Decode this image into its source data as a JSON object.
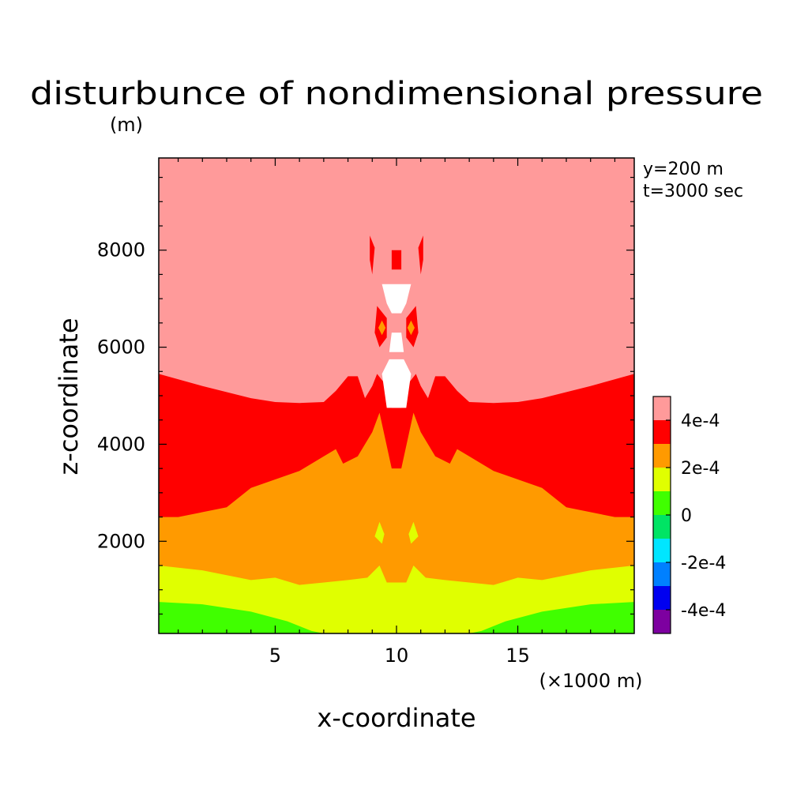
{
  "chart_data": {
    "type": "filled-contour",
    "title": "disturbunce of nondimensional pressure",
    "xlabel": "x-coordinate",
    "ylabel": "z-coordinate",
    "x_unit": "(×1000 m)",
    "y_unit": "(m)",
    "annotations": [
      "y=200 m",
      "t=3000 sec"
    ],
    "xlim": [
      0.2,
      19.8
    ],
    "ylim": [
      100,
      9900
    ],
    "x_ticks": [
      5,
      10,
      15
    ],
    "y_ticks": [
      2000,
      4000,
      6000,
      8000
    ],
    "grid": false,
    "legend_position": "right",
    "colorbar": {
      "levels": [
        {
          "lower": -0.0005,
          "upper": -0.0004,
          "color": "#7d00a0"
        },
        {
          "lower": -0.0004,
          "upper": -0.0003,
          "color": "#0000f0"
        },
        {
          "lower": -0.0003,
          "upper": -0.0002,
          "color": "#0080ff"
        },
        {
          "lower": -0.0002,
          "upper": -0.0001,
          "color": "#00e6ff"
        },
        {
          "lower": -0.0001,
          "upper": 0,
          "color": "#00e464"
        },
        {
          "lower": 0,
          "upper": 0.0001,
          "color": "#40ff00"
        },
        {
          "lower": 0.0001,
          "upper": 0.0002,
          "color": "#e0ff00"
        },
        {
          "lower": 0.0002,
          "upper": 0.0003,
          "color": "#ff9a00"
        },
        {
          "lower": 0.0003,
          "upper": 0.0004,
          "color": "#ff0000"
        },
        {
          "lower": 0.0004,
          "upper": 0.0005,
          "color": "#ff9a9a"
        }
      ],
      "tick_labels": [
        "4e-4",
        "2e-4",
        "0",
        "-2e-4",
        "-4e-4"
      ],
      "tick_values": [
        0.0004,
        0.0002,
        0,
        -0.0002,
        -0.0004
      ]
    },
    "contour_boundaries": [
      {
        "name": "upper-0.0003",
        "points": [
          [
            0.2,
            5450
          ],
          [
            2,
            5200
          ],
          [
            4,
            4950
          ],
          [
            5,
            4870
          ],
          [
            6,
            4850
          ],
          [
            7,
            4870
          ],
          [
            7.5,
            5100
          ],
          [
            8,
            5400
          ],
          [
            8.4,
            5400
          ],
          [
            8.7,
            4950
          ],
          [
            9,
            5200
          ],
          [
            9.2,
            5450
          ],
          [
            9.6,
            5200
          ],
          [
            9.8,
            4750
          ],
          [
            10.2,
            4750
          ],
          [
            10.4,
            5200
          ],
          [
            10.8,
            5450
          ],
          [
            11,
            5200
          ],
          [
            11.3,
            4950
          ],
          [
            11.6,
            5400
          ],
          [
            12,
            5400
          ],
          [
            12.5,
            5100
          ],
          [
            13,
            4870
          ],
          [
            14,
            4850
          ],
          [
            15,
            4870
          ],
          [
            16,
            4950
          ],
          [
            18,
            5200
          ],
          [
            19.8,
            5450
          ]
        ]
      },
      {
        "name": "upper-0.0002",
        "points": [
          [
            0.2,
            2500
          ],
          [
            1,
            2500
          ],
          [
            3,
            2700
          ],
          [
            4,
            3100
          ],
          [
            6,
            3450
          ],
          [
            7,
            3750
          ],
          [
            7.5,
            3900
          ],
          [
            7.8,
            3600
          ],
          [
            8.4,
            3750
          ],
          [
            9,
            4250
          ],
          [
            9.3,
            4650
          ],
          [
            9.8,
            3500
          ],
          [
            10.2,
            3500
          ],
          [
            10.7,
            4650
          ],
          [
            11,
            4250
          ],
          [
            11.6,
            3750
          ],
          [
            12.2,
            3600
          ],
          [
            12.5,
            3900
          ],
          [
            13,
            3750
          ],
          [
            14,
            3450
          ],
          [
            16,
            3100
          ],
          [
            17,
            2700
          ],
          [
            19,
            2500
          ],
          [
            19.8,
            2500
          ]
        ]
      },
      {
        "name": "upper-0.0001",
        "points": [
          [
            0.2,
            1500
          ],
          [
            2,
            1400
          ],
          [
            4,
            1200
          ],
          [
            5,
            1250
          ],
          [
            6,
            1100
          ],
          [
            7,
            1150
          ],
          [
            8,
            1200
          ],
          [
            8.8,
            1250
          ],
          [
            9.3,
            1500
          ],
          [
            9.6,
            1150
          ],
          [
            10.4,
            1150
          ],
          [
            10.7,
            1500
          ],
          [
            11.2,
            1250
          ],
          [
            12,
            1200
          ],
          [
            13,
            1150
          ],
          [
            14,
            1100
          ],
          [
            15,
            1250
          ],
          [
            16,
            1200
          ],
          [
            18,
            1400
          ],
          [
            19.8,
            1500
          ]
        ]
      },
      {
        "name": "upper-0",
        "points": [
          [
            0.2,
            750
          ],
          [
            2,
            700
          ],
          [
            4,
            550
          ],
          [
            5.5,
            350
          ],
          [
            6.5,
            150
          ],
          [
            7,
            100
          ],
          [
            13,
            100
          ],
          [
            13.5,
            150
          ],
          [
            14.5,
            350
          ],
          [
            16,
            550
          ],
          [
            18,
            700
          ],
          [
            19.8,
            750
          ]
        ]
      }
    ],
    "features": [
      {
        "name": "white-band",
        "color": "#ffffff",
        "points": [
          [
            9.4,
            5450
          ],
          [
            9.6,
            4750
          ],
          [
            10.4,
            4750
          ],
          [
            10.6,
            5450
          ],
          [
            10.3,
            5750
          ],
          [
            9.7,
            5750
          ]
        ]
      },
      {
        "name": "white-crescent",
        "color": "#ffffff",
        "points": [
          [
            9.4,
            7300
          ],
          [
            10.6,
            7300
          ],
          [
            10.4,
            6900
          ],
          [
            10.2,
            6700
          ],
          [
            9.8,
            6700
          ],
          [
            9.6,
            6900
          ]
        ]
      },
      {
        "name": "white-blob",
        "color": "#ffffff",
        "points": [
          [
            9.8,
            6300
          ],
          [
            10.2,
            6300
          ],
          [
            10.3,
            5900
          ],
          [
            9.7,
            5900
          ]
        ]
      },
      {
        "name": "red-core-top",
        "color": "#ff0000",
        "points": [
          [
            9.8,
            8000
          ],
          [
            10.2,
            8000
          ],
          [
            10.2,
            7600
          ],
          [
            9.8,
            7600
          ]
        ]
      },
      {
        "name": "red-sliver-left",
        "color": "#ff0000",
        "points": [
          [
            8.9,
            8300
          ],
          [
            9.1,
            8050
          ],
          [
            9.0,
            7500
          ],
          [
            8.9,
            7800
          ]
        ]
      },
      {
        "name": "red-sliver-right",
        "color": "#ff0000",
        "points": [
          [
            11.1,
            8300
          ],
          [
            10.9,
            8050
          ],
          [
            11.0,
            7500
          ],
          [
            11.1,
            7800
          ]
        ]
      },
      {
        "name": "red-arc-left",
        "color": "#ff0000",
        "points": [
          [
            9.2,
            6850
          ],
          [
            9.6,
            6600
          ],
          [
            9.6,
            6200
          ],
          [
            9.3,
            6000
          ],
          [
            9.1,
            6300
          ]
        ]
      },
      {
        "name": "red-arc-right",
        "color": "#ff0000",
        "points": [
          [
            10.8,
            6850
          ],
          [
            10.4,
            6600
          ],
          [
            10.4,
            6200
          ],
          [
            10.7,
            6000
          ],
          [
            10.9,
            6300
          ]
        ]
      },
      {
        "name": "orange-spot-left",
        "color": "#ff9a00",
        "points": [
          [
            9.4,
            6550
          ],
          [
            9.55,
            6400
          ],
          [
            9.4,
            6250
          ],
          [
            9.25,
            6400
          ]
        ]
      },
      {
        "name": "orange-spot-right",
        "color": "#ff9a00",
        "points": [
          [
            10.6,
            6550
          ],
          [
            10.75,
            6400
          ],
          [
            10.6,
            6250
          ],
          [
            10.45,
            6400
          ]
        ]
      },
      {
        "name": "yellow-blob-left",
        "color": "#e0ff00",
        "points": [
          [
            9.3,
            2400
          ],
          [
            9.5,
            2150
          ],
          [
            9.4,
            1950
          ],
          [
            9.1,
            2100
          ]
        ]
      },
      {
        "name": "yellow-blob-right",
        "color": "#e0ff00",
        "points": [
          [
            10.7,
            2400
          ],
          [
            10.9,
            2100
          ],
          [
            10.6,
            1950
          ],
          [
            10.5,
            2150
          ]
        ]
      }
    ]
  }
}
